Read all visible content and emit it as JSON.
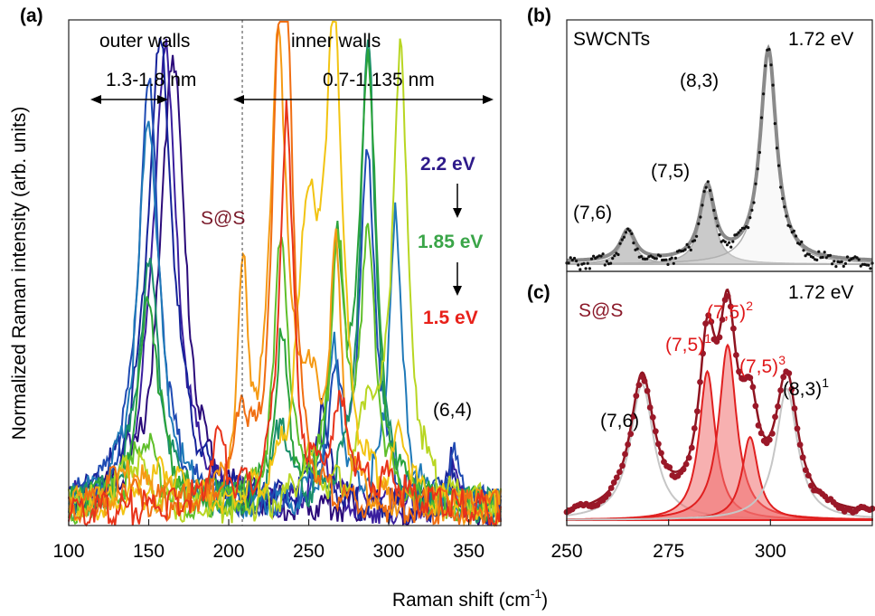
{
  "figure": {
    "xlabel": "Raman shift (cm",
    "xlabel_sup": "-1",
    "xlabel_end": ")",
    "ylabel": "Normalized Raman intensity (arb. units)"
  },
  "chart_data": [
    {
      "panel": "(a)",
      "type": "line",
      "xlim": [
        100,
        370
      ],
      "xticks": [
        100,
        150,
        200,
        250,
        300,
        350
      ],
      "ylim": [
        0,
        1.1
      ],
      "grid": false,
      "annotations": {
        "outer_walls": "outer walls",
        "inner_walls": "inner walls",
        "outer_range": "1.3-1.8 nm",
        "inner_range": "0.7-1.135 nm",
        "sample": "S@S",
        "energy_top": "2.2 eV",
        "energy_mid": "1.85 eV",
        "energy_bottom": "1.5 eV",
        "chirality": "(6,4)",
        "divider_x": 200
      },
      "series": [
        {
          "color": "#2b0b7a",
          "peaks": [
            [
              165,
              1.0,
              9
            ],
            [
              340,
              0.05,
              4
            ]
          ]
        },
        {
          "color": "#3a1e9e",
          "peaks": [
            [
              160,
              1.0,
              9
            ],
            [
              258,
              0.15,
              5
            ],
            [
              340,
              0.07,
              4
            ]
          ]
        },
        {
          "color": "#16239a",
          "peaks": [
            [
              157,
              1.0,
              10
            ],
            [
              258,
              0.2,
              5
            ],
            [
              340,
              0.1,
              4
            ]
          ]
        },
        {
          "color": "#1f4bb3",
          "peaks": [
            [
              150,
              0.92,
              8
            ],
            [
              287,
              0.75,
              6
            ],
            [
              266,
              0.25,
              5
            ],
            [
              340,
              0.12,
              4
            ]
          ]
        },
        {
          "color": "#1f79b8",
          "peaks": [
            [
              150,
              0.85,
              8
            ],
            [
              304,
              0.62,
              5
            ],
            [
              266,
              0.35,
              5
            ]
          ]
        },
        {
          "color": "#1a8f6a",
          "peaks": [
            [
              150,
              0.52,
              8
            ],
            [
              287,
              1.0,
              6
            ],
            [
              233,
              0.2,
              5
            ]
          ]
        },
        {
          "color": "#2aa33c",
          "peaks": [
            [
              150,
              0.45,
              8
            ],
            [
              287,
              0.98,
              6
            ],
            [
              233,
              0.35,
              5
            ],
            [
              268,
              0.5,
              5
            ]
          ]
        },
        {
          "color": "#5fbf2a",
          "peaks": [
            [
              147,
              0.15,
              9
            ],
            [
              233,
              0.6,
              5
            ],
            [
              268,
              0.55,
              5
            ],
            [
              287,
              0.55,
              6
            ]
          ]
        },
        {
          "color": "#b8d622",
          "peaks": [
            [
              140,
              0.1,
              10
            ],
            [
              307,
              0.98,
              6
            ],
            [
              287,
              0.2,
              6
            ],
            [
              250,
              0.1,
              8
            ]
          ]
        },
        {
          "color": "#f2c413",
          "peaks": [
            [
              160,
              0.08,
              10
            ],
            [
              266,
              1.0,
              6
            ],
            [
              250,
              0.6,
              8
            ],
            [
              308,
              0.15,
              5
            ]
          ]
        },
        {
          "color": "#f59a14",
          "peaks": [
            [
              140,
              0.07,
              10
            ],
            [
              231,
              1.0,
              6
            ],
            [
              209,
              0.45,
              4
            ],
            [
              250,
              0.2,
              10
            ],
            [
              267,
              0.5,
              4
            ]
          ]
        },
        {
          "color": "#f06e12",
          "peaks": [
            [
              130,
              0.06,
              10
            ],
            [
              236,
              1.0,
              5
            ],
            [
              230,
              0.55,
              5
            ],
            [
              208,
              0.2,
              5
            ]
          ]
        },
        {
          "color": "#e8331a",
          "peaks": [
            [
              193,
              0.15,
              6
            ],
            [
              236,
              0.85,
              5
            ],
            [
              270,
              0.2,
              8
            ],
            [
              300,
              0.05,
              10
            ]
          ]
        }
      ]
    },
    {
      "panel": "(b)",
      "type": "line",
      "title": "SWCNTs",
      "energy": "1.72 eV",
      "xlim": [
        250,
        325
      ],
      "ylim": [
        0,
        1.1
      ],
      "peaks": [
        {
          "label": "(7,6)",
          "x": 265,
          "amp": 0.14,
          "hw": 2.2
        },
        {
          "label": "(7,5)",
          "x": 284.5,
          "amp": 0.33,
          "hw": 2.2
        },
        {
          "label": "(8,3)",
          "x": 299.5,
          "amp": 0.96,
          "hw": 2.4
        }
      ]
    },
    {
      "panel": "(c)",
      "type": "line",
      "title": "S@S",
      "energy": "1.72 eV",
      "xlim": [
        250,
        325
      ],
      "xticks": [
        250,
        275,
        300
      ],
      "ylim": [
        0,
        1.1
      ],
      "peaks": [
        {
          "label": "(7,6)",
          "x": 268.5,
          "amp": 0.62,
          "hw": 3.5
        },
        {
          "label": "(7,5)",
          "sup": "1",
          "x": 284.5,
          "amp": 0.68,
          "hw": 2.4
        },
        {
          "label": "(7,5)",
          "sup": "2",
          "x": 289.5,
          "amp": 0.8,
          "hw": 2.6
        },
        {
          "label": "(7,5)",
          "sup": "3",
          "x": 295,
          "amp": 0.38,
          "hw": 2.4
        },
        {
          "label": "(8,3)",
          "sup": "1",
          "x": 304,
          "amp": 0.6,
          "hw": 3.2
        }
      ]
    }
  ]
}
